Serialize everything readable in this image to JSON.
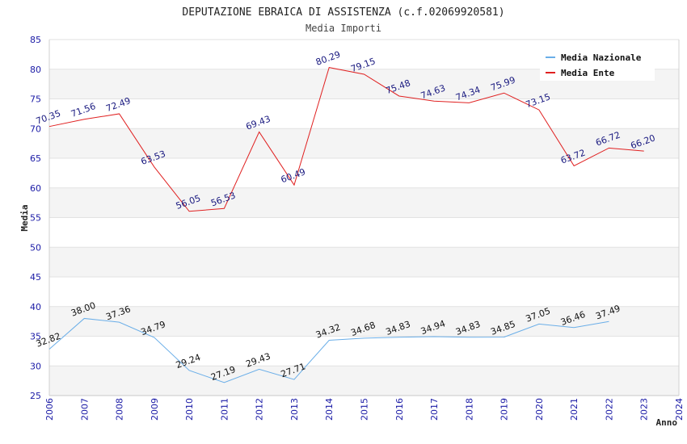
{
  "chart_data": {
    "type": "line",
    "title": "DEPUTAZIONE EBRAICA DI ASSISTENZA (c.f.02069920581)",
    "subtitle": "Media Importi",
    "xlabel": "Anno",
    "ylabel": "Media",
    "x": [
      "2006",
      "2007",
      "2008",
      "2009",
      "2010",
      "2011",
      "2012",
      "2013",
      "2014",
      "2015",
      "2016",
      "2017",
      "2018",
      "2019",
      "2020",
      "2021",
      "2022",
      "2023",
      "2024"
    ],
    "ylim": [
      25,
      85
    ],
    "yticks": [
      25,
      30,
      35,
      40,
      45,
      50,
      55,
      60,
      65,
      70,
      75,
      80,
      85
    ],
    "grid": "horizontal-bands",
    "legend_position": "top-right",
    "series": [
      {
        "name": "Media Nazionale",
        "color": "#6aaee8",
        "values": [
          32.82,
          38.0,
          37.36,
          34.79,
          29.24,
          27.19,
          29.43,
          27.71,
          34.32,
          34.68,
          34.83,
          34.94,
          34.83,
          34.85,
          37.05,
          36.46,
          37.49,
          null,
          null
        ],
        "labels": [
          "32.82",
          "38.00",
          "37.36",
          "34.79",
          "29.24",
          "27.19",
          "29.43",
          "27.71",
          "34.32",
          "34.68",
          "34.83",
          "34.94",
          "34.83",
          "34.85",
          "37.05",
          "36.46",
          "37.49",
          null,
          null
        ]
      },
      {
        "name": "Media Ente",
        "color": "#e02020",
        "values": [
          70.35,
          71.56,
          72.49,
          63.53,
          56.05,
          56.53,
          69.43,
          60.49,
          80.29,
          79.15,
          75.48,
          74.63,
          74.34,
          75.99,
          73.15,
          63.72,
          66.72,
          66.2,
          null
        ],
        "labels": [
          "70.35",
          "71.56",
          "72.49",
          "63.53",
          "56.05",
          "56.53",
          "69.43",
          "60.49",
          "80.29",
          "79.15",
          "75.48",
          "74.63",
          "74.34",
          "75.99",
          "73.15",
          "63.72",
          "66.72",
          "66.20",
          null
        ]
      }
    ]
  }
}
